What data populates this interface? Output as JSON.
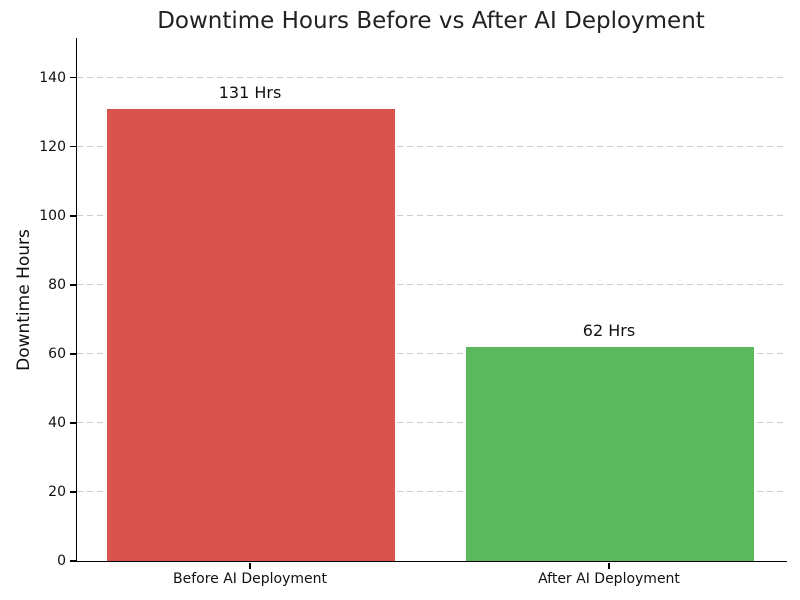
{
  "chart_data": {
    "type": "bar",
    "title": "Downtime Hours Before vs After AI Deployment",
    "categories": [
      "Before AI Deployment",
      "After AI Deployment"
    ],
    "values": [
      131,
      62
    ],
    "bar_value_labels": [
      "131 Hrs",
      "62 Hrs"
    ],
    "bar_colors": [
      "#d9534f",
      "#5cb85c"
    ],
    "xlabel": "",
    "ylabel": "Downtime Hours",
    "ylim": [
      0,
      151.5
    ],
    "yticks": [
      0,
      20,
      40,
      60,
      80,
      100,
      120,
      140
    ],
    "grid": "horizontal dashed",
    "grid_color": "#cccccc",
    "axis_color": "#000000",
    "title_color": "#222222",
    "legend": "none",
    "background_color": "#ffffff"
  }
}
